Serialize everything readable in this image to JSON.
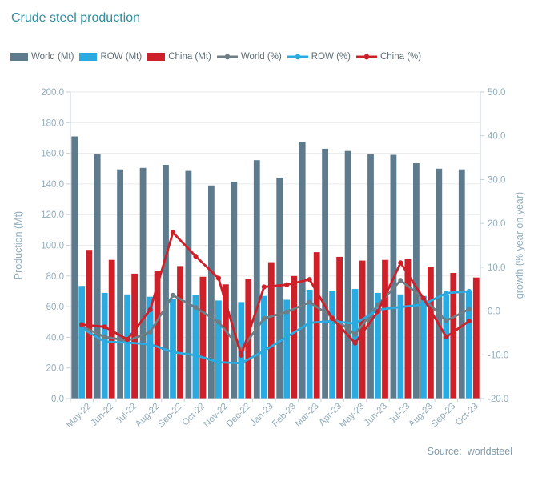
{
  "title": "Crude steel production",
  "source": {
    "label": "Source:",
    "value": "worldsteel"
  },
  "colors": {
    "title": "#2E8C9E",
    "world_bar": "#5D7B8D",
    "row": "#29ABE2",
    "china": "#CE2029",
    "world_line": "#6F7D84",
    "axis_text": "#93ADBB",
    "legend_text": "#5D6D76",
    "source_text": "#7F9AAB",
    "grid": "#EAEAEA",
    "axis_line": "#C3D0D8"
  },
  "legend": {
    "items": [
      {
        "label": "World (Mt)",
        "type": "bar",
        "color": "#5D7B8D"
      },
      {
        "label": "ROW (Mt)",
        "type": "bar",
        "color": "#29ABE2"
      },
      {
        "label": "China (Mt)",
        "type": "bar",
        "color": "#CE2029"
      },
      {
        "label": "World (%)",
        "type": "line",
        "color": "#6F7D84"
      },
      {
        "label": "ROW (%)",
        "type": "line",
        "color": "#29ABE2"
      },
      {
        "label": "China (%)",
        "type": "line",
        "color": "#CE2029"
      }
    ]
  },
  "chart_data": {
    "type": "bar",
    "subtype": "combo bar+line, dual axis",
    "title": "Crude steel production",
    "grid": true,
    "legend_position": "top",
    "categories": [
      "May-22",
      "Jun-22",
      "Jul-22",
      "Aug-22",
      "Sep-22",
      "Oct-22",
      "Nov-22",
      "Dec-22",
      "Jan-23",
      "Feb-23",
      "Mar-23",
      "Apr-23",
      "May-23",
      "Jun-23",
      "Jul-23",
      "Aug-23",
      "Sep-23",
      "Oct-23"
    ],
    "left_axis": {
      "title": "Production (Mt)",
      "min": 0,
      "max": 200,
      "step": 20,
      "ticks": [
        "200.0",
        "180.0",
        "160.0",
        "140.0",
        "120.0",
        "100.0",
        "80.0",
        "60.0",
        "40.0",
        "20.0",
        "0.0"
      ]
    },
    "right_axis": {
      "title": "growth (% year on year)",
      "min": -20,
      "max": 50,
      "step": 10,
      "ticks": [
        "50.0",
        "40.0",
        "30.0",
        "20.0",
        "10.0",
        "0.0",
        "-10.0",
        "-20.0"
      ]
    },
    "series": [
      {
        "name": "World (Mt)",
        "type": "bar",
        "axis": "left",
        "color": "#5D7B8D",
        "values": [
          171.0,
          159.5,
          149.5,
          150.5,
          152.5,
          148.5,
          139.0,
          141.5,
          155.5,
          144.0,
          167.5,
          163.0,
          161.5,
          159.5,
          159.0,
          153.5,
          150.0,
          149.5
        ]
      },
      {
        "name": "ROW (Mt)",
        "type": "bar",
        "axis": "left",
        "color": "#29ABE2",
        "values": [
          73.5,
          69.0,
          68.0,
          66.5,
          65.0,
          67.5,
          64.0,
          63.0,
          67.0,
          64.5,
          71.0,
          70.0,
          71.5,
          69.0,
          68.0,
          67.0,
          68.0,
          70.5
        ]
      },
      {
        "name": "China (Mt)",
        "type": "bar",
        "axis": "left",
        "color": "#CE2029",
        "values": [
          97.0,
          90.5,
          81.5,
          83.5,
          86.5,
          79.5,
          74.5,
          78.0,
          89.0,
          80.0,
          95.5,
          92.5,
          90.0,
          90.5,
          91.0,
          86.0,
          82.0,
          79.0
        ]
      },
      {
        "name": "World (%)",
        "type": "line",
        "axis": "right",
        "color": "#6F7D84",
        "values": [
          -3.5,
          -5.9,
          -6.8,
          -4.8,
          3.6,
          0.8,
          -2.5,
          -8.8,
          -1.7,
          -0.2,
          2.0,
          -1.4,
          -5.3,
          1.4,
          7.0,
          2.9,
          -2.2,
          0.4
        ]
      },
      {
        "name": "ROW (%)",
        "type": "line",
        "axis": "right",
        "color": "#29ABE2",
        "values": [
          -3.9,
          -7.0,
          -7.2,
          -7.6,
          -9.4,
          -10.1,
          -11.7,
          -11.9,
          -9.1,
          -5.9,
          -2.7,
          -2.3,
          -2.9,
          0.3,
          0.9,
          1.5,
          4.1,
          4.5
        ]
      },
      {
        "name": "China (%)",
        "type": "line",
        "axis": "right",
        "color": "#CE2029",
        "values": [
          -3.1,
          -3.6,
          -6.5,
          0.3,
          17.9,
          12.5,
          7.5,
          -10.1,
          5.5,
          6.0,
          7.2,
          -1.7,
          -7.3,
          -0.1,
          11.0,
          2.9,
          -5.9,
          -2.3
        ]
      }
    ]
  }
}
